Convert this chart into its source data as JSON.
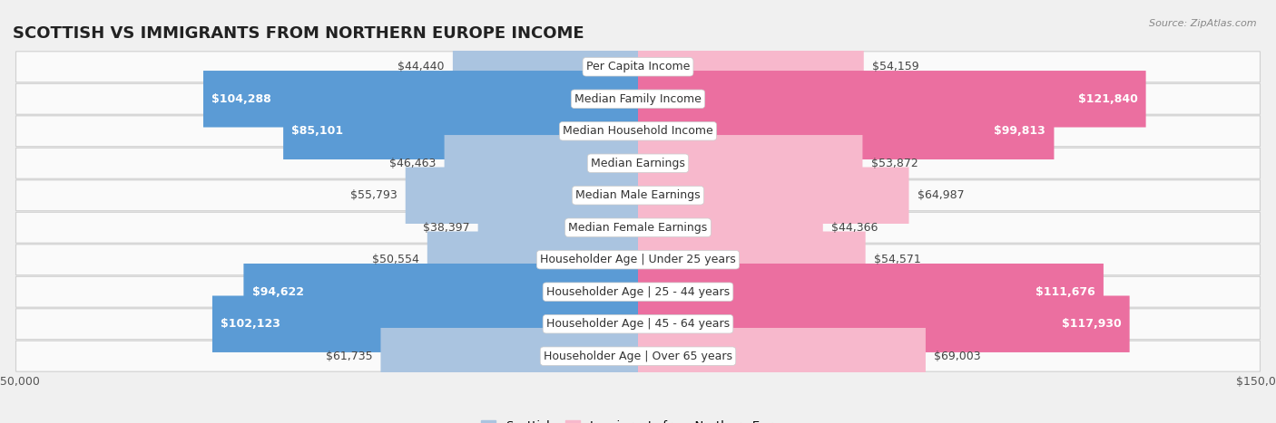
{
  "title": "SCOTTISH VS IMMIGRANTS FROM NORTHERN EUROPE INCOME",
  "source": "Source: ZipAtlas.com",
  "categories": [
    "Per Capita Income",
    "Median Family Income",
    "Median Household Income",
    "Median Earnings",
    "Median Male Earnings",
    "Median Female Earnings",
    "Householder Age | Under 25 years",
    "Householder Age | 25 - 44 years",
    "Householder Age | 45 - 64 years",
    "Householder Age | Over 65 years"
  ],
  "scottish_values": [
    44440,
    104288,
    85101,
    46463,
    55793,
    38397,
    50554,
    94622,
    102123,
    61735
  ],
  "immigrant_values": [
    54159,
    121840,
    99813,
    53872,
    64987,
    44366,
    54571,
    111676,
    117930,
    69003
  ],
  "scottish_labels": [
    "$44,440",
    "$104,288",
    "$85,101",
    "$46,463",
    "$55,793",
    "$38,397",
    "$50,554",
    "$94,622",
    "$102,123",
    "$61,735"
  ],
  "immigrant_labels": [
    "$54,159",
    "$121,840",
    "$99,813",
    "$53,872",
    "$64,987",
    "$44,366",
    "$54,571",
    "$111,676",
    "$117,930",
    "$69,003"
  ],
  "scottish_color_light": "#aac4e0",
  "scottish_color_dark": "#5b9bd5",
  "immigrant_color_light": "#f7b8cc",
  "immigrant_color_dark": "#eb6fa0",
  "max_value": 150000,
  "legend_scottish": "Scottish",
  "legend_immigrant": "Immigrants from Northern Europe",
  "background_color": "#f0f0f0",
  "row_bg_color": "#fafafa",
  "label_fontsize": 9.0,
  "title_fontsize": 13,
  "axis_label_fontsize": 9,
  "label_threshold": 75000
}
